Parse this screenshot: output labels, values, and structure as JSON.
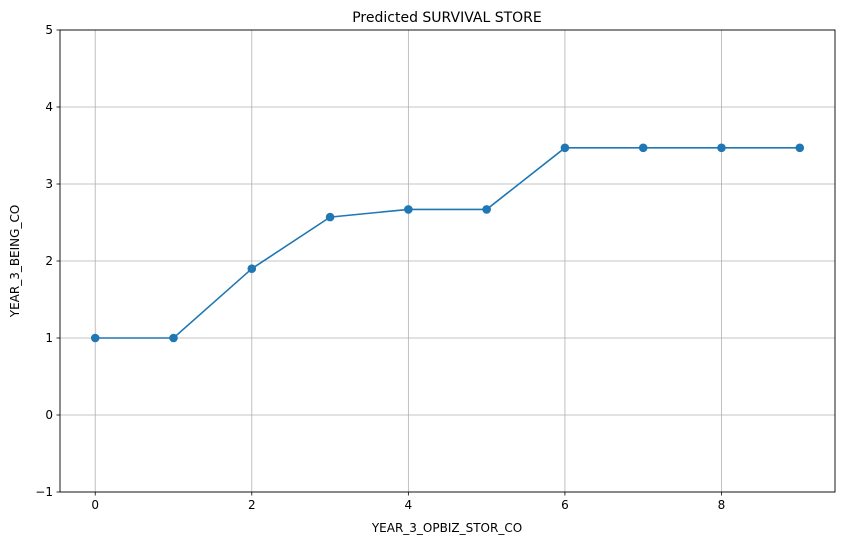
{
  "chart_data": {
    "type": "line",
    "title": "Predicted SURVIVAL STORE",
    "xlabel": "YEAR_3_OPBIZ_STOR_CO",
    "ylabel": "YEAR_3_BEING_CO",
    "xlim": [
      -0.45,
      9.45
    ],
    "ylim": [
      -1,
      5
    ],
    "xticks": [
      0,
      2,
      4,
      6,
      8
    ],
    "yticks": [
      -1,
      0,
      1,
      2,
      3,
      4,
      5
    ],
    "xtick_labels": [
      "0",
      "2",
      "4",
      "6",
      "8"
    ],
    "ytick_labels": [
      "−1",
      "0",
      "1",
      "2",
      "3",
      "4",
      "5"
    ],
    "grid": true,
    "marker": "circle",
    "series": [
      {
        "x": [
          0,
          1,
          2,
          3,
          4,
          5,
          6,
          7,
          8,
          9
        ],
        "values": [
          1.0,
          1.0,
          1.9,
          2.57,
          2.67,
          2.67,
          3.47,
          3.47,
          3.47,
          3.47
        ],
        "color": "#1f77b4"
      }
    ]
  }
}
